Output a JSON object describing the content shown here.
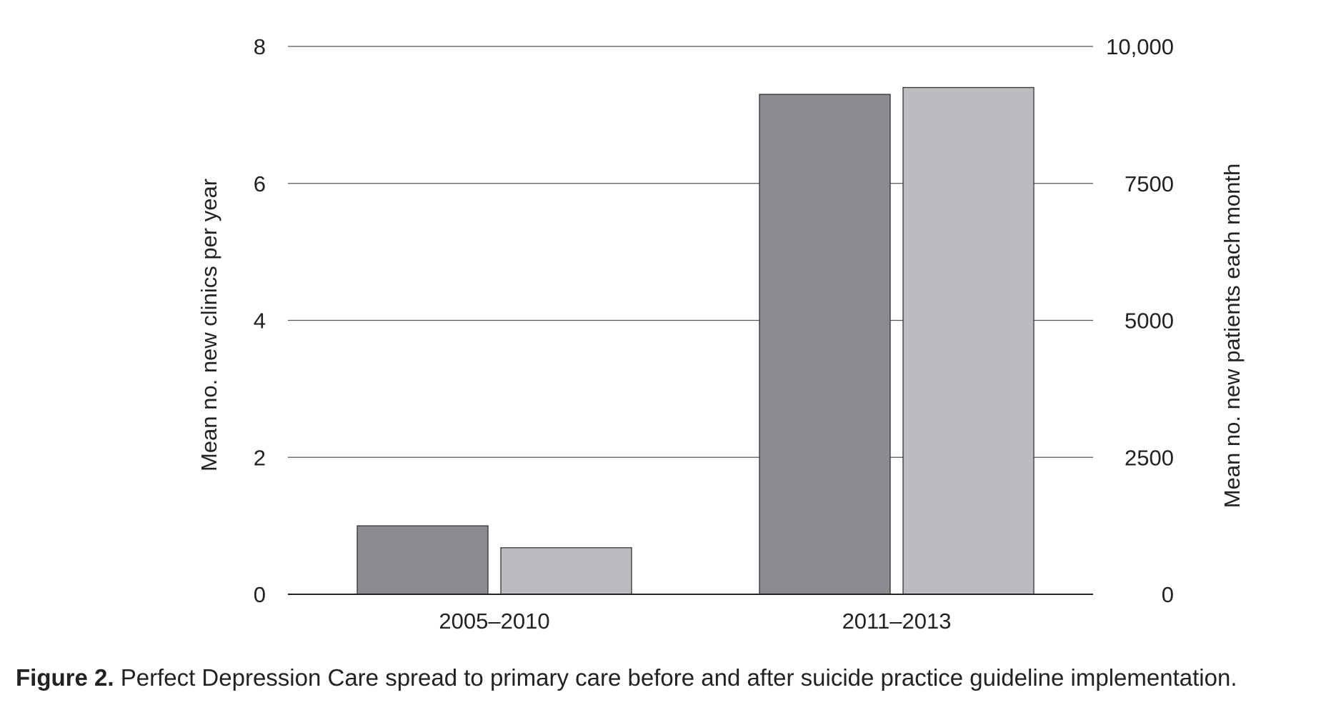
{
  "chart_data": {
    "type": "bar",
    "categories": [
      "2005–2010",
      "2011–2013"
    ],
    "series": [
      {
        "values": [
          1.0,
          7.3
        ],
        "axis": "left",
        "color": "#8b8c90"
      },
      {
        "values": [
          850,
          9250
        ],
        "axis": "right",
        "color": "#bbbcbf"
      }
    ],
    "y_left": {
      "label": "Mean no. new clinics per year",
      "range": [
        0,
        8
      ],
      "ticks": [
        0,
        2,
        4,
        6,
        8
      ],
      "tick_labels": [
        "0",
        "2",
        "4",
        "6",
        "8"
      ]
    },
    "y_right": {
      "label": "Mean no. new patients each month",
      "range": [
        0,
        10000
      ],
      "ticks": [
        0,
        2500,
        5000,
        7500,
        10000
      ],
      "tick_labels": [
        "0",
        "2500",
        "5000",
        "7500",
        "10,000"
      ]
    },
    "grid": true
  },
  "caption": {
    "label": "Figure 2.",
    "text": "Perfect Depression Care spread to primary care before and after suicide practice guideline implementation."
  }
}
